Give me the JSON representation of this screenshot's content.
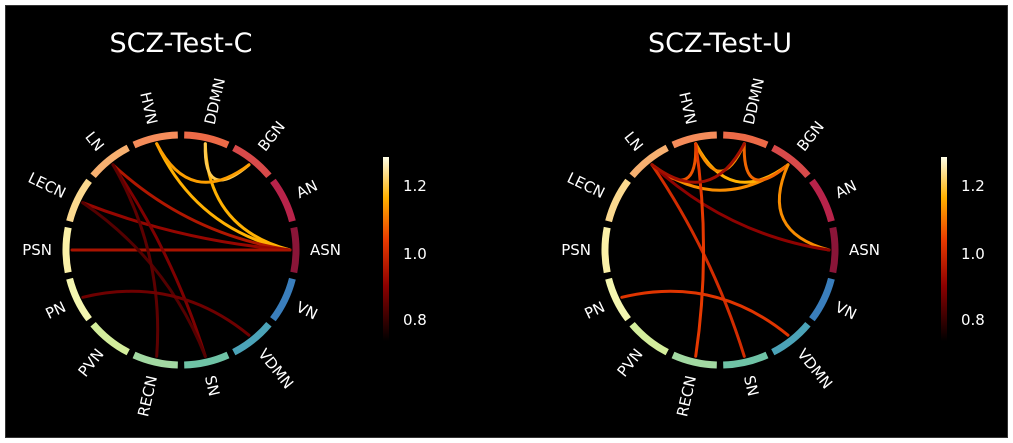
{
  "panels": [
    {
      "title": "SCZ-Test-C",
      "connections": [
        {
          "from": "DDMN",
          "to": "ASN",
          "strength": 1.18
        },
        {
          "from": "HVN",
          "to": "ASN",
          "strength": 1.18
        },
        {
          "from": "DDMN",
          "to": "BGN",
          "strength": 1.22
        },
        {
          "from": "HVN",
          "to": "BGN",
          "strength": 1.16
        },
        {
          "from": "LN",
          "to": "ASN",
          "strength": 0.97
        },
        {
          "from": "LECN",
          "to": "ASN",
          "strength": 0.93
        },
        {
          "from": "PSN",
          "to": "ASN",
          "strength": 0.96
        },
        {
          "from": "LN",
          "to": "SN",
          "strength": 0.9
        },
        {
          "from": "LECN",
          "to": "SN",
          "strength": 0.85
        },
        {
          "from": "LN",
          "to": "RECN",
          "strength": 0.86
        },
        {
          "from": "PN",
          "to": "VDMN",
          "strength": 0.88
        }
      ]
    },
    {
      "title": "SCZ-Test-U",
      "connections": [
        {
          "from": "LN",
          "to": "BGN",
          "strength": 1.14
        },
        {
          "from": "HVN",
          "to": "BGN",
          "strength": 1.18
        },
        {
          "from": "HVN",
          "to": "DDMN",
          "strength": 1.14
        },
        {
          "from": "DDMN",
          "to": "BGN",
          "strength": 1.1
        },
        {
          "from": "BGN",
          "to": "ASN",
          "strength": 1.14
        },
        {
          "from": "HVN",
          "to": "LN",
          "strength": 1.08
        },
        {
          "from": "LN",
          "to": "ASN",
          "strength": 0.92
        },
        {
          "from": "LN",
          "to": "SN",
          "strength": 1.02
        },
        {
          "from": "HVN",
          "to": "RECN",
          "strength": 1.05
        },
        {
          "from": "PN",
          "to": "VDMN",
          "strength": 1.04
        },
        {
          "from": "DDMN",
          "to": "LN",
          "strength": 0.95
        }
      ]
    }
  ],
  "networks": [
    {
      "label": "ASN",
      "color": "#8a1538"
    },
    {
      "label": "AN",
      "color": "#b8234a"
    },
    {
      "label": "BGN",
      "color": "#d84a4a"
    },
    {
      "label": "DDMN",
      "color": "#ec6a47"
    },
    {
      "label": "HVN",
      "color": "#f58c5a"
    },
    {
      "label": "LN",
      "color": "#f7b070"
    },
    {
      "label": "LECN",
      "color": "#fbd98f"
    },
    {
      "label": "PSN",
      "color": "#fbf1a8"
    },
    {
      "label": "PN",
      "color": "#f4f6b0"
    },
    {
      "label": "PVN",
      "color": "#d4ee9c"
    },
    {
      "label": "RECN",
      "color": "#a2d9a2"
    },
    {
      "label": "SN",
      "color": "#6fc3a6"
    },
    {
      "label": "VDMN",
      "color": "#4ba3b8"
    },
    {
      "label": "VN",
      "color": "#3a7ebc"
    }
  ],
  "colorbar": {
    "min": 0.75,
    "max": 1.3,
    "ticks": [
      "1.2",
      "1.0",
      "0.8"
    ],
    "tick_values": [
      1.2,
      1.0,
      0.8
    ]
  }
}
